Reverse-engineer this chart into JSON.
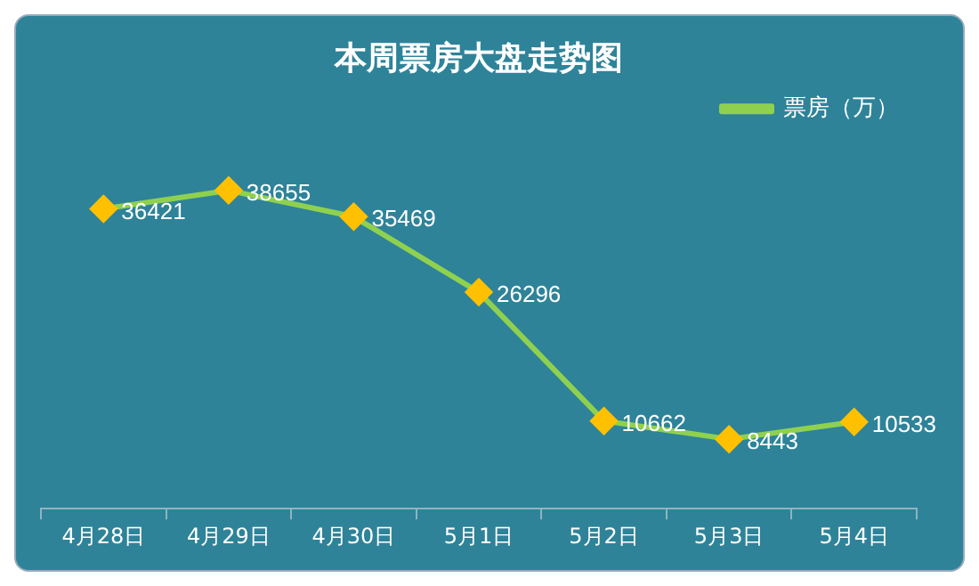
{
  "chart_data": {
    "type": "line",
    "title": "本周票房大盘走势图",
    "categories": [
      "4月28日",
      "4月29日",
      "4月30日",
      "5月1日",
      "5月2日",
      "5月3日",
      "5月4日"
    ],
    "series": [
      {
        "name": "票房（万）",
        "color": "#8fd14f",
        "values": [
          36421,
          38655,
          35469,
          26296,
          10662,
          8443,
          10533
        ]
      }
    ],
    "data_labels": true,
    "legend": "top right",
    "marker": "diamond",
    "line_style": "solid",
    "grid": false
  }
}
